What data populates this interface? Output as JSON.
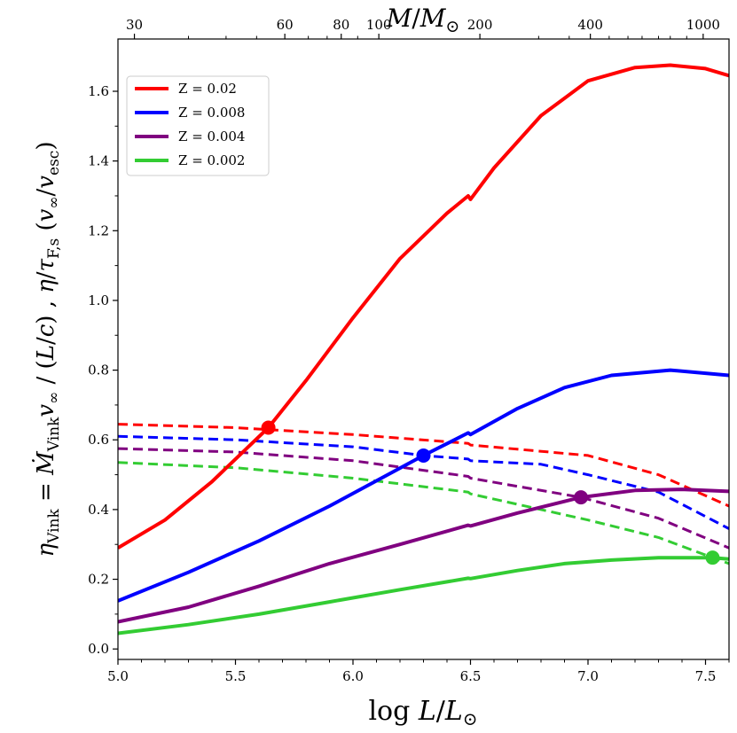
{
  "chart_data": {
    "type": "line",
    "xlabel": "log L/L⊙",
    "x2label": "M/M⊙",
    "ylabel": "η_Vink = Ṁ_Vink v∞ / (L/c) , η/τ_F,s (v∞/v_esc)",
    "xlim": [
      5.0,
      7.6
    ],
    "ylim": [
      -0.03,
      1.75
    ],
    "x_ticks": [
      5.0,
      5.5,
      6.0,
      6.5,
      7.0,
      7.5
    ],
    "x_tick_labels": [
      "5.0",
      "5.5",
      "6.0",
      "6.5",
      "7.0",
      "7.5"
    ],
    "y_ticks": [
      0.0,
      0.2,
      0.4,
      0.6,
      0.8,
      1.0,
      1.2,
      1.4,
      1.6
    ],
    "y_tick_labels": [
      "0.0",
      "0.2",
      "0.4",
      "0.6",
      "0.8",
      "1.0",
      "1.2",
      "1.4",
      "1.6"
    ],
    "top_ticks": [
      {
        "logL": 5.07,
        "label": "30"
      },
      {
        "logL": 5.71,
        "label": "60"
      },
      {
        "logL": 5.95,
        "label": "80"
      },
      {
        "logL": 6.11,
        "label": "100"
      },
      {
        "logL": 6.54,
        "label": "200"
      },
      {
        "logL": 7.01,
        "label": "400"
      },
      {
        "logL": 7.49,
        "label": "1000"
      }
    ],
    "legend_position": "top-left",
    "series": [
      {
        "name": "Z = 0.02",
        "color": "#ff0000",
        "solid_x": [
          5.0,
          5.2,
          5.4,
          5.64,
          5.8,
          6.0,
          6.2,
          6.4,
          6.49,
          6.5,
          6.6,
          6.8,
          7.0,
          7.2,
          7.35,
          7.5,
          7.6
        ],
        "solid_y": [
          0.29,
          0.37,
          0.48,
          0.635,
          0.77,
          0.95,
          1.12,
          1.25,
          1.3,
          1.29,
          1.38,
          1.53,
          1.63,
          1.668,
          1.675,
          1.665,
          1.645
        ],
        "dashed_x": [
          5.0,
          5.5,
          6.0,
          6.49,
          6.5,
          7.0,
          7.3,
          7.6
        ],
        "dashed_y": [
          0.645,
          0.635,
          0.615,
          0.59,
          0.585,
          0.555,
          0.5,
          0.41
        ],
        "marker": {
          "x": 5.64,
          "y": 0.635
        }
      },
      {
        "name": "Z = 0.008",
        "color": "#0000ff",
        "solid_x": [
          5.0,
          5.3,
          5.6,
          5.9,
          6.3,
          6.49,
          6.5,
          6.7,
          6.9,
          7.1,
          7.35,
          7.6
        ],
        "solid_y": [
          0.138,
          0.22,
          0.31,
          0.41,
          0.555,
          0.62,
          0.615,
          0.69,
          0.75,
          0.785,
          0.8,
          0.785
        ],
        "dashed_x": [
          5.0,
          5.5,
          6.0,
          6.3,
          6.49,
          6.5,
          6.8,
          7.0,
          7.3,
          7.6
        ],
        "dashed_y": [
          0.61,
          0.6,
          0.58,
          0.555,
          0.545,
          0.54,
          0.53,
          0.5,
          0.45,
          0.345
        ],
        "marker": {
          "x": 6.3,
          "y": 0.555
        }
      },
      {
        "name": "Z = 0.004",
        "color": "#800080",
        "solid_x": [
          5.0,
          5.3,
          5.6,
          5.9,
          6.2,
          6.49,
          6.5,
          6.7,
          6.97,
          7.2,
          7.4,
          7.6
        ],
        "solid_y": [
          0.078,
          0.12,
          0.18,
          0.245,
          0.3,
          0.355,
          0.353,
          0.39,
          0.435,
          0.455,
          0.458,
          0.452
        ],
        "dashed_x": [
          5.0,
          5.5,
          6.0,
          6.49,
          6.5,
          6.97,
          7.3,
          7.6
        ],
        "dashed_y": [
          0.575,
          0.565,
          0.54,
          0.495,
          0.49,
          0.435,
          0.375,
          0.29
        ],
        "marker": {
          "x": 6.97,
          "y": 0.435
        }
      },
      {
        "name": "Z = 0.002",
        "color": "#33cc33",
        "solid_x": [
          5.0,
          5.3,
          5.6,
          5.9,
          6.2,
          6.49,
          6.5,
          6.7,
          6.9,
          7.1,
          7.3,
          7.53,
          7.6
        ],
        "solid_y": [
          0.045,
          0.07,
          0.1,
          0.135,
          0.17,
          0.203,
          0.202,
          0.225,
          0.245,
          0.255,
          0.262,
          0.262,
          0.258
        ],
        "dashed_x": [
          5.0,
          5.5,
          6.0,
          6.49,
          6.5,
          7.0,
          7.3,
          7.53,
          7.6
        ],
        "dashed_y": [
          0.535,
          0.52,
          0.49,
          0.45,
          0.445,
          0.37,
          0.32,
          0.262,
          0.245
        ],
        "marker": {
          "x": 7.53,
          "y": 0.262
        }
      }
    ]
  }
}
